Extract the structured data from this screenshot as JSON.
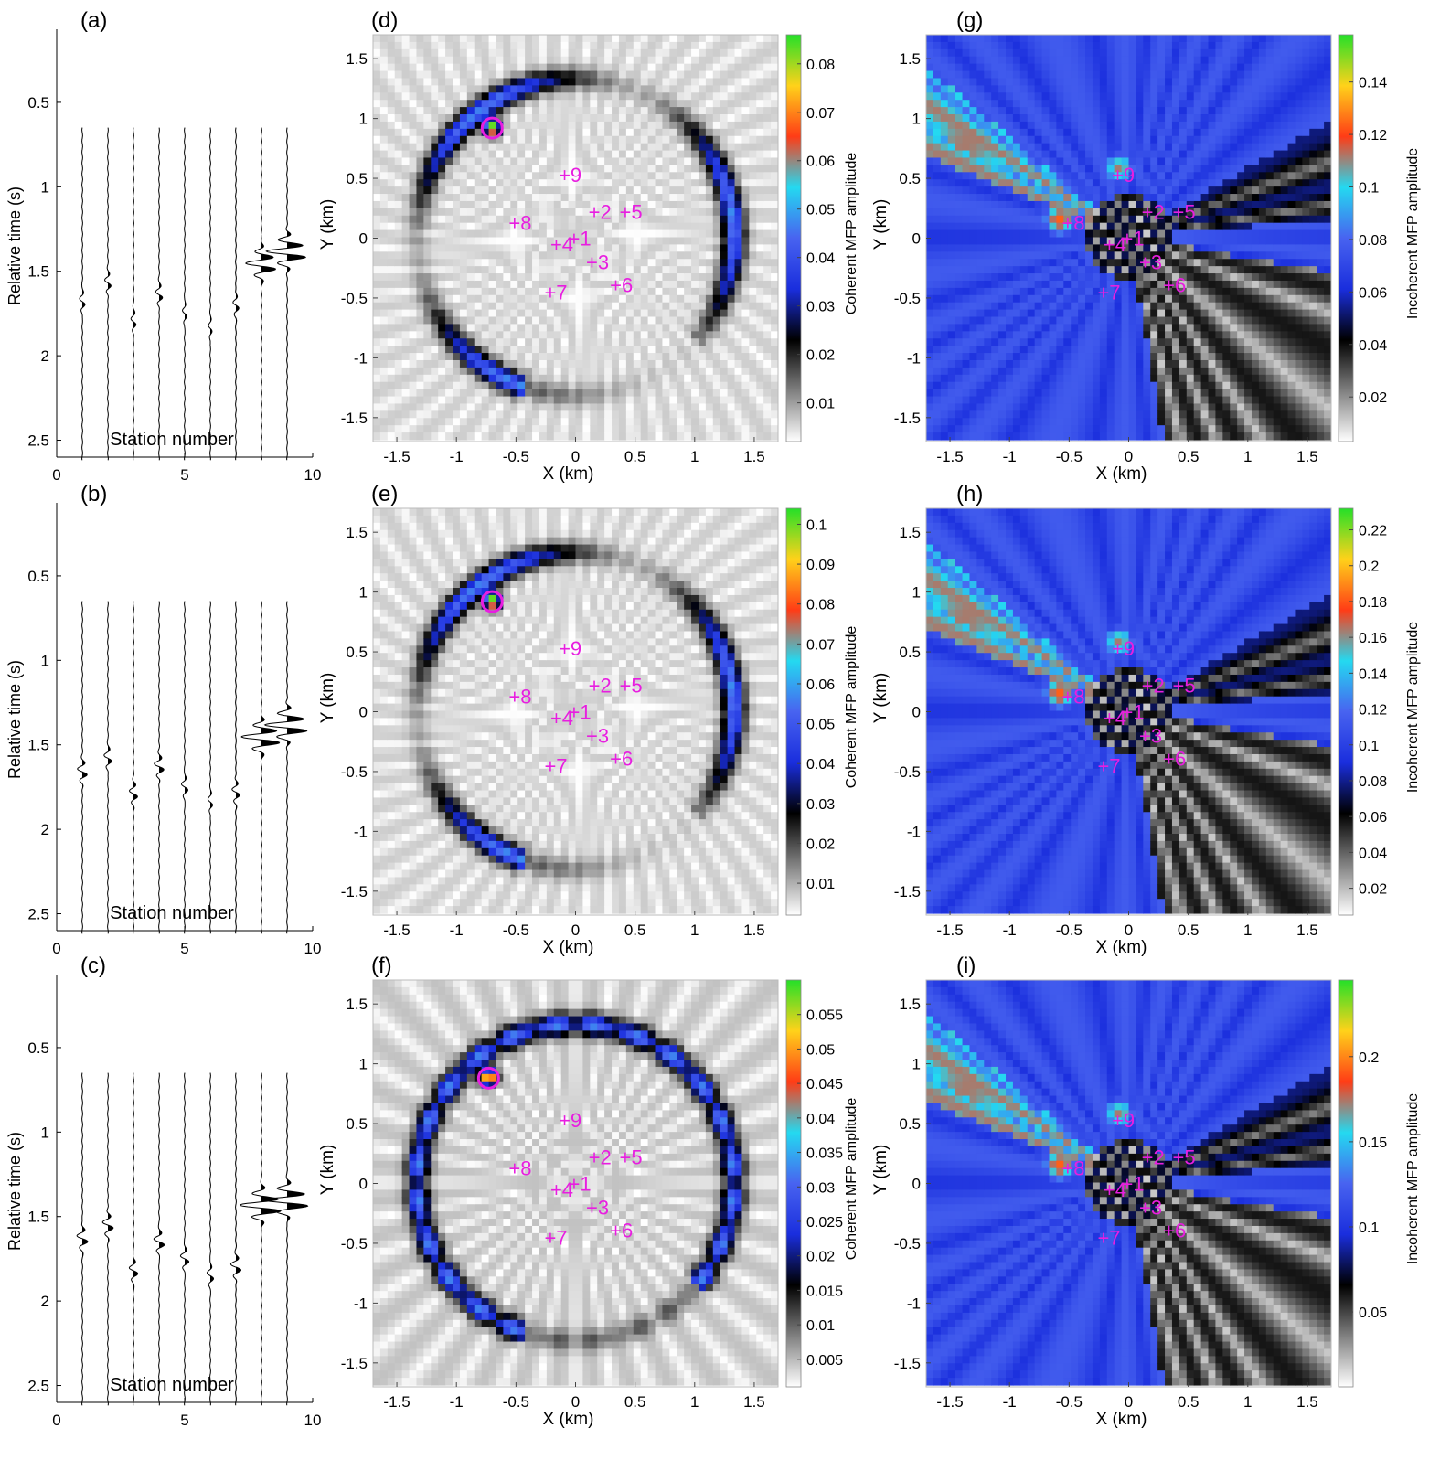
{
  "figure": {
    "wave_panels": [
      {
        "label": "(a)"
      },
      {
        "label": "(b)"
      },
      {
        "label": "(c)"
      }
    ],
    "coherent_panels": [
      {
        "label": "(d)"
      },
      {
        "label": "(e)"
      },
      {
        "label": "(f)"
      }
    ],
    "incoherent_panels": [
      {
        "label": "(g)"
      },
      {
        "label": "(h)"
      },
      {
        "label": "(i)"
      }
    ]
  },
  "colors": {
    "magenta": "#e81ee0",
    "colormap": [
      "#ffffff",
      "#808080",
      "#000000",
      "#1a2edd",
      "#4863f0",
      "#24d9f0",
      "#ff3c16",
      "#ffd21a",
      "#24e028"
    ]
  },
  "chart_data": [
    {
      "type": "line",
      "panel": "(a)",
      "xlabel": "Station number",
      "ylabel": "Relative time (s)",
      "xlim": [
        0,
        10
      ],
      "ylim": [
        2.6,
        0.1
      ],
      "xticks": [
        0,
        5,
        10
      ],
      "yticks": [
        0.5,
        1,
        1.5,
        2,
        2.5
      ],
      "traces": [
        {
          "station": 1,
          "arrival": 1.68,
          "amp": 0.12
        },
        {
          "station": 2,
          "arrival": 1.57,
          "amp": 0.12
        },
        {
          "station": 3,
          "arrival": 1.8,
          "amp": 0.1
        },
        {
          "station": 4,
          "arrival": 1.64,
          "amp": 0.14
        },
        {
          "station": 5,
          "arrival": 1.75,
          "amp": 0.1
        },
        {
          "station": 6,
          "arrival": 1.84,
          "amp": 0.08
        },
        {
          "station": 7,
          "arrival": 1.7,
          "amp": 0.12
        },
        {
          "station": 8,
          "arrival": 1.47,
          "amp": 0.55
        },
        {
          "station": 9,
          "arrival": 1.4,
          "amp": 0.7
        }
      ]
    },
    {
      "type": "line",
      "panel": "(b)",
      "xlabel": "Station number",
      "ylabel": "Relative time (s)",
      "xlim": [
        0,
        10
      ],
      "ylim": [
        2.6,
        0.1
      ],
      "xticks": [
        0,
        5,
        10
      ],
      "yticks": [
        0.5,
        1,
        1.5,
        2,
        2.5
      ],
      "traces": [
        {
          "station": 1,
          "arrival": 1.66,
          "amp": 0.18
        },
        {
          "station": 2,
          "arrival": 1.58,
          "amp": 0.16
        },
        {
          "station": 3,
          "arrival": 1.79,
          "amp": 0.15
        },
        {
          "station": 4,
          "arrival": 1.63,
          "amp": 0.18
        },
        {
          "station": 5,
          "arrival": 1.75,
          "amp": 0.14
        },
        {
          "station": 6,
          "arrival": 1.84,
          "amp": 0.1
        },
        {
          "station": 7,
          "arrival": 1.78,
          "amp": 0.14
        },
        {
          "station": 8,
          "arrival": 1.47,
          "amp": 0.7
        },
        {
          "station": 9,
          "arrival": 1.4,
          "amp": 0.75
        }
      ]
    },
    {
      "type": "line",
      "panel": "(c)",
      "xlabel": "Station number",
      "ylabel": "Relative time (s)",
      "xlim": [
        0,
        10
      ],
      "ylim": [
        2.6,
        0.1
      ],
      "xticks": [
        0,
        5,
        10
      ],
      "yticks": [
        0.5,
        1,
        1.5,
        2,
        2.5
      ],
      "traces": [
        {
          "station": 1,
          "arrival": 1.63,
          "amp": 0.22
        },
        {
          "station": 2,
          "arrival": 1.55,
          "amp": 0.2
        },
        {
          "station": 3,
          "arrival": 1.82,
          "amp": 0.18
        },
        {
          "station": 4,
          "arrival": 1.65,
          "amp": 0.22
        },
        {
          "station": 5,
          "arrival": 1.75,
          "amp": 0.18
        },
        {
          "station": 6,
          "arrival": 1.85,
          "amp": 0.14
        },
        {
          "station": 7,
          "arrival": 1.8,
          "amp": 0.2
        },
        {
          "station": 8,
          "arrival": 1.45,
          "amp": 0.75
        },
        {
          "station": 9,
          "arrival": 1.42,
          "amp": 0.8
        }
      ]
    },
    {
      "type": "heatmap",
      "panel": "(d)",
      "xlabel": "X (km)",
      "ylabel": "Y (km)",
      "xlim": [
        -1.7,
        1.7
      ],
      "ylim": [
        -1.7,
        1.7
      ],
      "xticks": [
        -1.5,
        -1,
        -0.5,
        0,
        0.5,
        1,
        1.5
      ],
      "yticks": [
        -1.5,
        -1,
        -0.5,
        0,
        0.5,
        1,
        1.5
      ],
      "colorbar": {
        "label": "Coherent MFP amplitude",
        "min": 0.002,
        "max": 0.086,
        "ticks": [
          0.01,
          0.02,
          0.03,
          0.04,
          0.05,
          0.06,
          0.07,
          0.08
        ]
      },
      "source": {
        "x": -0.7,
        "y": 0.92
      },
      "ring": {
        "cx": 0,
        "cy": 0,
        "r": 1.33
      },
      "stations": [
        {
          "label": "+1",
          "x": 0.0,
          "y": 0.0
        },
        {
          "label": "+2",
          "x": 0.17,
          "y": 0.22
        },
        {
          "label": "+3",
          "x": 0.15,
          "y": -0.2
        },
        {
          "label": "+4",
          "x": -0.15,
          "y": -0.05
        },
        {
          "label": "+5",
          "x": 0.43,
          "y": 0.22
        },
        {
          "label": "+6",
          "x": 0.35,
          "y": -0.39
        },
        {
          "label": "+7",
          "x": -0.2,
          "y": -0.45
        },
        {
          "label": "+8",
          "x": -0.5,
          "y": 0.13
        },
        {
          "label": "+9",
          "x": -0.08,
          "y": 0.53
        }
      ]
    },
    {
      "type": "heatmap",
      "panel": "(e)",
      "xlabel": "X (km)",
      "ylabel": "Y (km)",
      "xlim": [
        -1.7,
        1.7
      ],
      "ylim": [
        -1.7,
        1.7
      ],
      "xticks": [
        -1.5,
        -1,
        -0.5,
        0,
        0.5,
        1,
        1.5
      ],
      "yticks": [
        -1.5,
        -1,
        -0.5,
        0,
        0.5,
        1,
        1.5
      ],
      "colorbar": {
        "label": "Coherent MFP amplitude",
        "min": 0.002,
        "max": 0.104,
        "ticks": [
          0.01,
          0.02,
          0.03,
          0.04,
          0.05,
          0.06,
          0.07,
          0.08,
          0.09,
          0.1
        ]
      },
      "source": {
        "x": -0.7,
        "y": 0.92
      },
      "ring": {
        "cx": 0,
        "cy": 0,
        "r": 1.33
      },
      "stations": [
        {
          "label": "+1",
          "x": 0.0,
          "y": 0.0
        },
        {
          "label": "+2",
          "x": 0.17,
          "y": 0.22
        },
        {
          "label": "+3",
          "x": 0.15,
          "y": -0.2
        },
        {
          "label": "+4",
          "x": -0.15,
          "y": -0.05
        },
        {
          "label": "+5",
          "x": 0.43,
          "y": 0.22
        },
        {
          "label": "+6",
          "x": 0.35,
          "y": -0.39
        },
        {
          "label": "+7",
          "x": -0.2,
          "y": -0.45
        },
        {
          "label": "+8",
          "x": -0.5,
          "y": 0.13
        },
        {
          "label": "+9",
          "x": -0.08,
          "y": 0.53
        }
      ]
    },
    {
      "type": "heatmap",
      "panel": "(f)",
      "xlabel": "X (km)",
      "ylabel": "Y (km)",
      "xlim": [
        -1.7,
        1.7
      ],
      "ylim": [
        -1.7,
        1.7
      ],
      "xticks": [
        -1.5,
        -1,
        -0.5,
        0,
        0.5,
        1,
        1.5
      ],
      "yticks": [
        -1.5,
        -1,
        -0.5,
        0,
        0.5,
        1,
        1.5
      ],
      "colorbar": {
        "label": "Coherent MFP amplitude",
        "min": 0.001,
        "max": 0.06,
        "ticks": [
          0.005,
          0.01,
          0.015,
          0.02,
          0.025,
          0.03,
          0.035,
          0.04,
          0.045,
          0.05,
          0.055
        ]
      },
      "source": {
        "x": -0.73,
        "y": 0.88
      },
      "ring": {
        "cx": 0,
        "cy": 0,
        "r": 1.33
      },
      "stations": [
        {
          "label": "+1",
          "x": 0.0,
          "y": 0.0
        },
        {
          "label": "+2",
          "x": 0.17,
          "y": 0.22
        },
        {
          "label": "+3",
          "x": 0.15,
          "y": -0.2
        },
        {
          "label": "+4",
          "x": -0.15,
          "y": -0.05
        },
        {
          "label": "+5",
          "x": 0.43,
          "y": 0.22
        },
        {
          "label": "+6",
          "x": 0.35,
          "y": -0.39
        },
        {
          "label": "+7",
          "x": -0.2,
          "y": -0.45
        },
        {
          "label": "+8",
          "x": -0.5,
          "y": 0.13
        },
        {
          "label": "+9",
          "x": -0.08,
          "y": 0.53
        }
      ]
    },
    {
      "type": "heatmap",
      "panel": "(g)",
      "xlabel": "X (km)",
      "ylabel": "Y (km)",
      "xlim": [
        -1.7,
        1.7
      ],
      "ylim": [
        -1.7,
        1.7
      ],
      "xticks": [
        -1.5,
        -1,
        -0.5,
        0,
        0.5,
        1,
        1.5
      ],
      "yticks": [
        -1.5,
        -1,
        -0.5,
        0,
        0.5,
        1,
        1.5
      ],
      "colorbar": {
        "label": "Incoherent MFP amplitude",
        "min": 0.003,
        "max": 0.158,
        "ticks": [
          0.02,
          0.04,
          0.06,
          0.08,
          0.1,
          0.12,
          0.14
        ]
      },
      "hotspots": [
        {
          "x": -0.08,
          "y": 0.58
        },
        {
          "x": -0.58,
          "y": 0.15
        }
      ],
      "stations": [
        {
          "label": "+1",
          "x": 0.0,
          "y": 0.0
        },
        {
          "label": "+2",
          "x": 0.17,
          "y": 0.22
        },
        {
          "label": "+3",
          "x": 0.15,
          "y": -0.2
        },
        {
          "label": "+4",
          "x": -0.15,
          "y": -0.05
        },
        {
          "label": "+5",
          "x": 0.43,
          "y": 0.22
        },
        {
          "label": "+6",
          "x": 0.35,
          "y": -0.39
        },
        {
          "label": "+7",
          "x": -0.2,
          "y": -0.45
        },
        {
          "label": "+8",
          "x": -0.5,
          "y": 0.13
        },
        {
          "label": "+9",
          "x": -0.08,
          "y": 0.53
        }
      ]
    },
    {
      "type": "heatmap",
      "panel": "(h)",
      "xlabel": "X (km)",
      "ylabel": "Y (km)",
      "xlim": [
        -1.7,
        1.7
      ],
      "ylim": [
        -1.7,
        1.7
      ],
      "xticks": [
        -1.5,
        -1,
        -0.5,
        0,
        0.5,
        1,
        1.5
      ],
      "yticks": [
        -1.5,
        -1,
        -0.5,
        0,
        0.5,
        1,
        1.5
      ],
      "colorbar": {
        "label": "Incoherent MFP amplitude",
        "min": 0.005,
        "max": 0.232,
        "ticks": [
          0.02,
          0.04,
          0.06,
          0.08,
          0.1,
          0.12,
          0.14,
          0.16,
          0.18,
          0.2,
          0.22
        ]
      },
      "hotspots": [
        {
          "x": -0.08,
          "y": 0.58
        },
        {
          "x": -0.58,
          "y": 0.15
        }
      ],
      "stations": [
        {
          "label": "+1",
          "x": 0.0,
          "y": 0.0
        },
        {
          "label": "+2",
          "x": 0.17,
          "y": 0.22
        },
        {
          "label": "+3",
          "x": 0.15,
          "y": -0.2
        },
        {
          "label": "+4",
          "x": -0.15,
          "y": -0.05
        },
        {
          "label": "+5",
          "x": 0.43,
          "y": 0.22
        },
        {
          "label": "+6",
          "x": 0.35,
          "y": -0.39
        },
        {
          "label": "+7",
          "x": -0.2,
          "y": -0.45
        },
        {
          "label": "+8",
          "x": -0.5,
          "y": 0.13
        },
        {
          "label": "+9",
          "x": -0.08,
          "y": 0.53
        }
      ]
    },
    {
      "type": "heatmap",
      "panel": "(i)",
      "xlabel": "X (km)",
      "ylabel": "Y (km)",
      "xlim": [
        -1.7,
        1.7
      ],
      "ylim": [
        -1.7,
        1.7
      ],
      "xticks": [
        -1.5,
        -1,
        -0.5,
        0,
        0.5,
        1,
        1.5
      ],
      "yticks": [
        -1.5,
        -1,
        -0.5,
        0,
        0.5,
        1,
        1.5
      ],
      "colorbar": {
        "label": "Incoherent MFP amplitude",
        "min": 0.006,
        "max": 0.245,
        "ticks": [
          0.05,
          0.1,
          0.15,
          0.2
        ]
      },
      "hotspots": [
        {
          "x": -0.08,
          "y": 0.58
        },
        {
          "x": -0.58,
          "y": 0.15
        }
      ],
      "stations": [
        {
          "label": "+1",
          "x": 0.0,
          "y": 0.0
        },
        {
          "label": "+2",
          "x": 0.17,
          "y": 0.22
        },
        {
          "label": "+3",
          "x": 0.15,
          "y": -0.2
        },
        {
          "label": "+4",
          "x": -0.15,
          "y": -0.05
        },
        {
          "label": "+5",
          "x": 0.43,
          "y": 0.22
        },
        {
          "label": "+6",
          "x": 0.35,
          "y": -0.39
        },
        {
          "label": "+7",
          "x": -0.2,
          "y": -0.45
        },
        {
          "label": "+8",
          "x": -0.5,
          "y": 0.13
        },
        {
          "label": "+9",
          "x": -0.08,
          "y": 0.53
        }
      ]
    }
  ]
}
